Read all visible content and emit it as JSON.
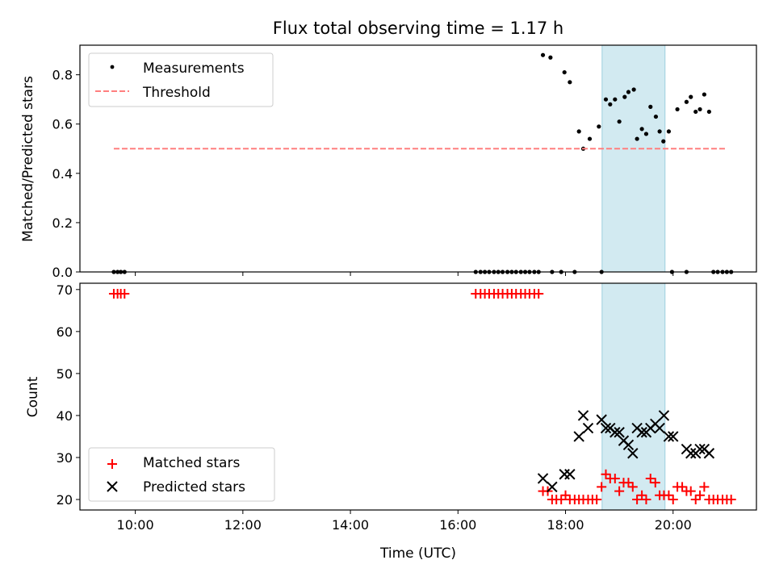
{
  "chart_data": {
    "title": "Flux total observing time = 1.17 h",
    "xlabel": "Time (UTC)",
    "x_ticks": [
      "10:00",
      "12:00",
      "14:00",
      "16:00",
      "18:00",
      "20:00"
    ],
    "x_range_hours": [
      8.97,
      21.55
    ],
    "highlight_span_hours": [
      18.68,
      19.85
    ],
    "highlight_color": "#add8e6",
    "panels": [
      {
        "type": "scatter",
        "ylabel": "Matched/Predicted stars",
        "ylim": [
          0,
          0.92
        ],
        "y_ticks": [
          "0.0",
          "0.2",
          "0.4",
          "0.6",
          "0.8"
        ],
        "legend_placement": "upper-left",
        "series": [
          {
            "name": "Measurements",
            "marker": "dot",
            "color": "#000000",
            "points": [
              [
                9.6,
                0
              ],
              [
                9.67,
                0
              ],
              [
                9.73,
                0
              ],
              [
                9.8,
                0
              ],
              [
                16.33,
                0
              ],
              [
                16.42,
                0
              ],
              [
                16.5,
                0
              ],
              [
                16.58,
                0
              ],
              [
                16.67,
                0
              ],
              [
                16.75,
                0
              ],
              [
                16.83,
                0
              ],
              [
                16.92,
                0
              ],
              [
                17.0,
                0
              ],
              [
                17.08,
                0
              ],
              [
                17.17,
                0
              ],
              [
                17.25,
                0
              ],
              [
                17.33,
                0
              ],
              [
                17.42,
                0
              ],
              [
                17.5,
                0
              ],
              [
                17.75,
                0
              ],
              [
                17.92,
                0
              ],
              [
                18.17,
                0
              ],
              [
                18.67,
                0
              ],
              [
                17.58,
                0.88
              ],
              [
                17.72,
                0.87
              ],
              [
                17.98,
                0.81
              ],
              [
                18.08,
                0.77
              ],
              [
                18.25,
                0.57
              ],
              [
                18.33,
                0.5
              ],
              [
                18.45,
                0.54
              ],
              [
                18.62,
                0.59
              ],
              [
                18.75,
                0.7
              ],
              [
                18.83,
                0.68
              ],
              [
                18.92,
                0.7
              ],
              [
                19.0,
                0.61
              ],
              [
                19.1,
                0.71
              ],
              [
                19.17,
                0.73
              ],
              [
                19.27,
                0.74
              ],
              [
                19.33,
                0.54
              ],
              [
                19.42,
                0.58
              ],
              [
                19.5,
                0.56
              ],
              [
                19.58,
                0.67
              ],
              [
                19.68,
                0.63
              ],
              [
                19.75,
                0.57
              ],
              [
                19.82,
                0.53
              ],
              [
                19.92,
                0.57
              ],
              [
                20.08,
                0.66
              ],
              [
                20.25,
                0.69
              ],
              [
                20.33,
                0.71
              ],
              [
                20.42,
                0.65
              ],
              [
                20.5,
                0.66
              ],
              [
                20.58,
                0.72
              ],
              [
                20.67,
                0.65
              ],
              [
                19.98,
                0
              ],
              [
                20.25,
                0
              ],
              [
                20.75,
                0
              ],
              [
                20.83,
                0
              ],
              [
                20.92,
                0
              ],
              [
                21.0,
                0
              ],
              [
                21.08,
                0
              ]
            ]
          },
          {
            "name": "Threshold",
            "marker": "dashed-line",
            "color": "#ff7f7f",
            "points": [
              [
                9.6,
                0.5
              ],
              [
                21.0,
                0.5
              ]
            ]
          }
        ]
      },
      {
        "type": "scatter",
        "ylabel": "Count",
        "ylim": [
          17.5,
          71.5
        ],
        "y_ticks": [
          "20",
          "30",
          "40",
          "50",
          "60",
          "70"
        ],
        "legend_placement": "lower-left",
        "series": [
          {
            "name": "Matched stars",
            "marker": "plus",
            "color": "#ff0000",
            "points": [
              [
                9.6,
                69
              ],
              [
                9.67,
                69
              ],
              [
                9.73,
                69
              ],
              [
                9.8,
                69
              ],
              [
                16.33,
                69
              ],
              [
                16.42,
                69
              ],
              [
                16.5,
                69
              ],
              [
                16.58,
                69
              ],
              [
                16.67,
                69
              ],
              [
                16.75,
                69
              ],
              [
                16.83,
                69
              ],
              [
                16.92,
                69
              ],
              [
                17.0,
                69
              ],
              [
                17.08,
                69
              ],
              [
                17.17,
                69
              ],
              [
                17.25,
                69
              ],
              [
                17.33,
                69
              ],
              [
                17.42,
                69
              ],
              [
                17.5,
                69
              ],
              [
                17.58,
                22
              ],
              [
                17.67,
                22
              ],
              [
                17.75,
                20
              ],
              [
                17.83,
                20
              ],
              [
                17.92,
                20
              ],
              [
                18.0,
                21
              ],
              [
                18.08,
                20
              ],
              [
                18.17,
                20
              ],
              [
                18.25,
                20
              ],
              [
                18.33,
                20
              ],
              [
                18.42,
                20
              ],
              [
                18.5,
                20
              ],
              [
                18.58,
                20
              ],
              [
                18.67,
                23
              ],
              [
                18.75,
                26
              ],
              [
                18.83,
                25
              ],
              [
                18.92,
                25
              ],
              [
                19.0,
                22
              ],
              [
                19.08,
                24
              ],
              [
                19.17,
                24
              ],
              [
                19.25,
                23
              ],
              [
                19.33,
                20
              ],
              [
                19.42,
                21
              ],
              [
                19.5,
                20
              ],
              [
                19.58,
                25
              ],
              [
                19.67,
                24
              ],
              [
                19.75,
                21
              ],
              [
                19.83,
                21
              ],
              [
                19.92,
                21
              ],
              [
                20.0,
                20
              ],
              [
                20.08,
                23
              ],
              [
                20.17,
                23
              ],
              [
                20.25,
                22
              ],
              [
                20.33,
                22
              ],
              [
                20.42,
                20
              ],
              [
                20.5,
                21
              ],
              [
                20.58,
                23
              ],
              [
                20.67,
                20
              ],
              [
                20.75,
                20
              ],
              [
                20.83,
                20
              ],
              [
                20.92,
                20
              ],
              [
                21.0,
                20
              ],
              [
                21.08,
                20
              ]
            ]
          },
          {
            "name": "Predicted stars",
            "marker": "x",
            "color": "#000000",
            "points": [
              [
                17.58,
                25
              ],
              [
                17.75,
                23
              ],
              [
                17.98,
                26
              ],
              [
                18.08,
                26
              ],
              [
                18.25,
                35
              ],
              [
                18.33,
                40
              ],
              [
                18.42,
                37
              ],
              [
                18.67,
                39
              ],
              [
                18.75,
                37
              ],
              [
                18.83,
                37
              ],
              [
                18.92,
                36
              ],
              [
                19.0,
                36
              ],
              [
                19.08,
                34
              ],
              [
                19.17,
                33
              ],
              [
                19.25,
                31
              ],
              [
                19.33,
                37
              ],
              [
                19.42,
                36
              ],
              [
                19.5,
                36
              ],
              [
                19.58,
                37
              ],
              [
                19.67,
                38
              ],
              [
                19.75,
                37
              ],
              [
                19.83,
                40
              ],
              [
                19.92,
                35
              ],
              [
                20.0,
                35
              ],
              [
                20.25,
                32
              ],
              [
                20.33,
                31
              ],
              [
                20.42,
                31
              ],
              [
                20.5,
                32
              ],
              [
                20.58,
                32
              ],
              [
                20.67,
                31
              ]
            ]
          }
        ]
      }
    ]
  }
}
